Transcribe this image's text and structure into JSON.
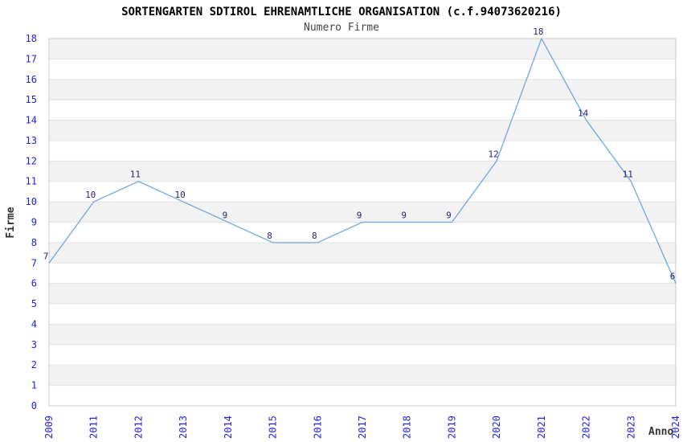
{
  "header": {
    "title": "SORTENGARTEN SDTIROL EHRENAMTLICHE ORGANISATION (c.f.94073620216)",
    "subtitle": "Numero Firme"
  },
  "chart_data": {
    "type": "line",
    "title": "SORTENGARTEN SDTIROL EHRENAMTLICHE ORGANISATION (c.f.94073620216)",
    "subtitle": "Numero Firme",
    "xlabel": "Anno",
    "ylabel": "Firme",
    "categories": [
      "2009",
      "2011",
      "2012",
      "2013",
      "2014",
      "2015",
      "2016",
      "2017",
      "2018",
      "2019",
      "2020",
      "2021",
      "2022",
      "2023",
      "2024"
    ],
    "series": [
      {
        "name": "Numero Firme",
        "values": [
          7,
          10,
          11,
          10,
          9,
          8,
          8,
          9,
          9,
          9,
          12,
          18,
          14,
          11,
          6
        ]
      }
    ],
    "ylim": [
      0,
      18
    ],
    "ytick_step": 1,
    "grid": "horizontal-stripes-alternating",
    "legend": "none",
    "data_labels": true,
    "colors": {
      "line": "#7aacdf",
      "tick_label": "#2222dd",
      "data_label": "#252575",
      "stripe_fill": "#f2f2f2",
      "grid_line": "#e3e3e3",
      "plot_border": "#c9c9c9",
      "title": "#000000",
      "subtitle": "#444444",
      "axis_title": "#333333",
      "background": "#ffffff"
    }
  }
}
